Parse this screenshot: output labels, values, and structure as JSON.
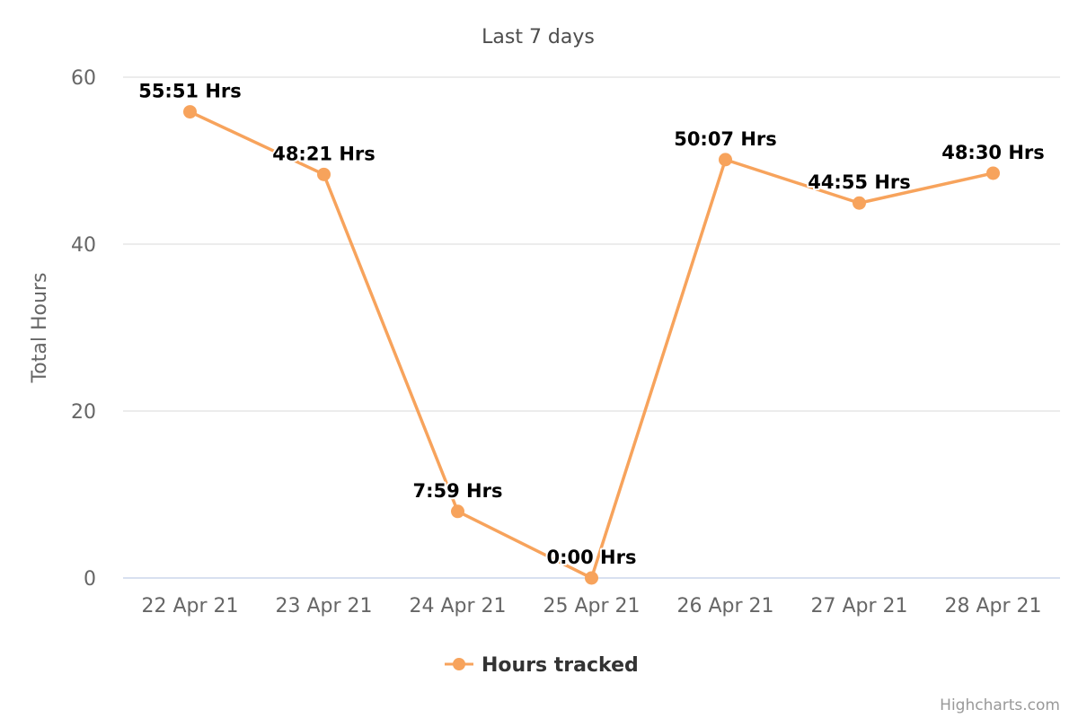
{
  "chart_data": {
    "type": "line",
    "title": "Last 7 days",
    "xlabel": "",
    "ylabel": "Total Hours",
    "ylim": [
      0,
      60
    ],
    "yticks": [
      0,
      20,
      40,
      60
    ],
    "categories": [
      "22 Apr 21",
      "23 Apr 21",
      "24 Apr 21",
      "25 Apr 21",
      "26 Apr 21",
      "27 Apr 21",
      "28 Apr 21"
    ],
    "grid": true,
    "legend_position": "bottom-center",
    "series": [
      {
        "name": "Hours tracked",
        "color": "#f7a35c",
        "values": [
          55.85,
          48.35,
          7.98,
          0,
          50.12,
          44.92,
          48.5
        ],
        "labels": [
          "55:51 Hrs",
          "48:21 Hrs",
          "7:59 Hrs",
          "0:00 Hrs",
          "50:07 Hrs",
          "44:55 Hrs",
          "48:30 Hrs"
        ]
      }
    ]
  },
  "credits": "Highcharts.com"
}
